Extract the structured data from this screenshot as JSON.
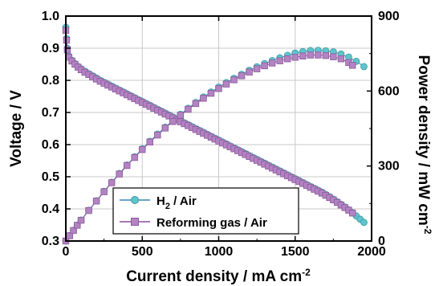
{
  "chart_data": {
    "type": "scatter",
    "xlabel": "Current density / mA cm",
    "xlabel_sup": "-2",
    "ylabel": "Voltage / V",
    "y2label": "Power density / mW cm",
    "y2label_sup": "-2",
    "xlim": [
      0,
      2000
    ],
    "ylim": [
      0.3,
      1.0
    ],
    "y2lim": [
      0,
      900
    ],
    "x_ticks": [
      "0",
      "500",
      "1000",
      "1500",
      "2000"
    ],
    "y_ticks": [
      "0.3",
      "0.4",
      "0.5",
      "0.6",
      "0.7",
      "0.8",
      "0.9",
      "1.0"
    ],
    "y2_ticks": [
      "0",
      "300",
      "600",
      "900"
    ],
    "grid": true,
    "legend_position": "bottom-left",
    "series": [
      {
        "name_main": "H",
        "name_sub": "2",
        "name_rest": " / Air",
        "marker": "circle",
        "color": "#5fc4cc",
        "line_color": "#3b86b8",
        "voltage": {
          "x": [
            0,
            5,
            10,
            20,
            40,
            60,
            80,
            100,
            125,
            150,
            175,
            200,
            225,
            250,
            275,
            300,
            325,
            350,
            375,
            400,
            425,
            450,
            475,
            500,
            525,
            550,
            575,
            600,
            625,
            650,
            675,
            700,
            725,
            750,
            775,
            800,
            825,
            850,
            875,
            900,
            925,
            950,
            975,
            1000,
            1025,
            1050,
            1075,
            1100,
            1125,
            1150,
            1175,
            1200,
            1225,
            1250,
            1275,
            1300,
            1325,
            1350,
            1375,
            1400,
            1425,
            1450,
            1475,
            1500,
            1525,
            1550,
            1575,
            1600,
            1625,
            1650,
            1675,
            1700,
            1725,
            1750,
            1775,
            1800,
            1825,
            1850,
            1875,
            1900,
            1925,
            1950
          ],
          "y": [
            0.965,
            0.93,
            0.9,
            0.875,
            0.862,
            0.852,
            0.843,
            0.836,
            0.828,
            0.821,
            0.814,
            0.807,
            0.8,
            0.794,
            0.788,
            0.782,
            0.776,
            0.77,
            0.764,
            0.758,
            0.752,
            0.746,
            0.74,
            0.734,
            0.728,
            0.722,
            0.716,
            0.71,
            0.704,
            0.698,
            0.692,
            0.686,
            0.68,
            0.674,
            0.668,
            0.662,
            0.656,
            0.65,
            0.644,
            0.638,
            0.632,
            0.626,
            0.62,
            0.614,
            0.608,
            0.602,
            0.596,
            0.59,
            0.584,
            0.578,
            0.572,
            0.566,
            0.56,
            0.554,
            0.548,
            0.542,
            0.536,
            0.53,
            0.524,
            0.518,
            0.512,
            0.506,
            0.5,
            0.494,
            0.488,
            0.482,
            0.476,
            0.47,
            0.464,
            0.458,
            0.452,
            0.445,
            0.438,
            0.43,
            0.422,
            0.414,
            0.406,
            0.397,
            0.388,
            0.378,
            0.368,
            0.358
          ]
        },
        "power": {
          "x": [
            0,
            25,
            50,
            75,
            100,
            150,
            200,
            250,
            300,
            350,
            400,
            450,
            500,
            550,
            600,
            650,
            700,
            750,
            800,
            850,
            900,
            950,
            1000,
            1050,
            1100,
            1150,
            1200,
            1250,
            1300,
            1350,
            1400,
            1450,
            1500,
            1550,
            1600,
            1650,
            1700,
            1750,
            1800,
            1850,
            1900,
            1950
          ],
          "y": [
            0,
            22,
            43,
            64,
            84,
            123,
            161,
            199,
            235,
            270,
            304,
            337,
            369,
            399,
            428,
            455,
            482,
            507,
            531,
            554,
            576,
            596,
            616,
            634,
            651,
            667,
            683,
            697,
            710,
            722,
            733,
            743,
            752,
            758,
            762,
            763,
            761,
            757,
            748,
            736,
            719,
            698
          ]
        }
      },
      {
        "name_main": "Reforming gas / Air",
        "name_sub": "",
        "name_rest": "",
        "marker": "square",
        "color": "#b383c2",
        "line_color": "#8a4f9e",
        "voltage": {
          "x": [
            0,
            5,
            10,
            20,
            40,
            60,
            80,
            100,
            125,
            150,
            175,
            200,
            225,
            250,
            275,
            300,
            325,
            350,
            375,
            400,
            425,
            450,
            475,
            500,
            525,
            550,
            575,
            600,
            625,
            650,
            675,
            700,
            725,
            750,
            775,
            800,
            825,
            850,
            875,
            900,
            925,
            950,
            975,
            1000,
            1025,
            1050,
            1075,
            1100,
            1125,
            1150,
            1175,
            1200,
            1225,
            1250,
            1275,
            1300,
            1325,
            1350,
            1375,
            1400,
            1425,
            1450,
            1475,
            1500,
            1525,
            1550,
            1575,
            1600,
            1625,
            1650,
            1675,
            1700,
            1725,
            1750,
            1775,
            1800,
            1825,
            1850,
            1875
          ],
          "y": [
            0.955,
            0.925,
            0.895,
            0.872,
            0.86,
            0.85,
            0.841,
            0.833,
            0.825,
            0.818,
            0.811,
            0.804,
            0.797,
            0.791,
            0.785,
            0.779,
            0.773,
            0.767,
            0.761,
            0.755,
            0.749,
            0.743,
            0.737,
            0.731,
            0.725,
            0.719,
            0.713,
            0.707,
            0.701,
            0.695,
            0.689,
            0.683,
            0.677,
            0.671,
            0.665,
            0.659,
            0.653,
            0.647,
            0.641,
            0.635,
            0.629,
            0.623,
            0.617,
            0.611,
            0.605,
            0.599,
            0.593,
            0.587,
            0.581,
            0.575,
            0.569,
            0.563,
            0.557,
            0.551,
            0.545,
            0.539,
            0.533,
            0.527,
            0.521,
            0.515,
            0.509,
            0.503,
            0.497,
            0.491,
            0.485,
            0.479,
            0.473,
            0.467,
            0.461,
            0.455,
            0.449,
            0.442,
            0.435,
            0.428,
            0.42,
            0.412,
            0.404,
            0.396,
            0.387
          ]
        },
        "power": {
          "x": [
            0,
            25,
            50,
            75,
            100,
            150,
            200,
            250,
            300,
            350,
            400,
            450,
            500,
            550,
            600,
            650,
            700,
            750,
            800,
            850,
            900,
            950,
            1000,
            1050,
            1100,
            1150,
            1200,
            1250,
            1300,
            1350,
            1400,
            1450,
            1500,
            1550,
            1600,
            1650,
            1700,
            1750,
            1800,
            1850,
            1875
          ],
          "y": [
            0,
            21,
            42,
            63,
            83,
            122,
            160,
            197,
            233,
            268,
            302,
            334,
            366,
            396,
            424,
            452,
            478,
            503,
            527,
            550,
            571,
            591,
            610,
            628,
            645,
            661,
            676,
            689,
            701,
            712,
            721,
            729,
            735,
            740,
            744,
            744,
            742,
            737,
            729,
            714,
            703
          ]
        }
      }
    ]
  }
}
